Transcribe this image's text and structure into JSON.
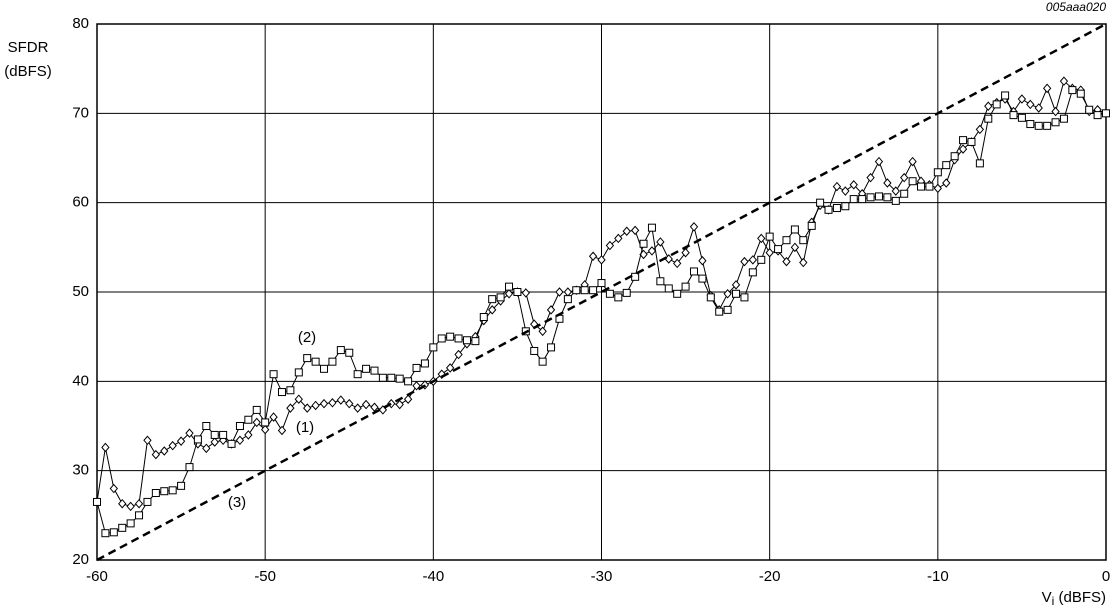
{
  "chart_data": {
    "type": "line",
    "code": "005aaa020",
    "y_label": [
      "SFDR",
      "(dBFS)"
    ],
    "x_label": [
      "V",
      "i",
      " (dBFS)"
    ],
    "xlim": [
      -60,
      0
    ],
    "xticks": [
      -60,
      -50,
      -40,
      -30,
      -20,
      -10,
      0
    ],
    "ylim": [
      20,
      80
    ],
    "yticks": [
      20,
      30,
      40,
      50,
      60,
      70,
      80
    ],
    "grid": true,
    "x": [
      -60,
      -59.5,
      -59,
      -58.5,
      -58,
      -57.5,
      -57,
      -56.5,
      -56,
      -55.5,
      -55,
      -54.5,
      -54,
      -53.5,
      -53,
      -52.5,
      -52,
      -51.5,
      -51,
      -50.5,
      -50,
      -49.5,
      -49,
      -48.5,
      -48,
      -47.5,
      -47,
      -46.5,
      -46,
      -45.5,
      -45,
      -44.5,
      -44,
      -43.5,
      -43,
      -42.5,
      -42,
      -41.5,
      -41,
      -40.5,
      -40,
      -39.5,
      -39,
      -38.5,
      -38,
      -37.5,
      -37,
      -36.5,
      -36,
      -35.5,
      -35,
      -34.5,
      -34,
      -33.5,
      -33,
      -32.5,
      -32,
      -31.5,
      -31,
      -30.5,
      -30,
      -29.5,
      -29,
      -28.5,
      -28,
      -27.5,
      -27,
      -26.5,
      -26,
      -25.5,
      -25,
      -24.5,
      -24,
      -23.5,
      -23,
      -22.5,
      -22,
      -21.5,
      -21,
      -20.5,
      -20,
      -19.5,
      -19,
      -18.5,
      -18,
      -17.5,
      -17,
      -16.5,
      -16,
      -15.5,
      -15,
      -14.5,
      -14,
      -13.5,
      -13,
      -12.5,
      -12,
      -11.5,
      -11,
      -10.5,
      -10,
      -9.5,
      -9,
      -8.5,
      -8,
      -7.5,
      -7,
      -6.5,
      -6,
      -5.5,
      -5,
      -4.5,
      -4,
      -3.5,
      -3,
      -2.5,
      -2,
      -1.5,
      -1,
      -0.5,
      0
    ],
    "series": [
      {
        "name": "(1)",
        "color": "#000000",
        "marker": "diamond",
        "line_style": "solid",
        "values": [
          26.5,
          32.6,
          28.0,
          26.3,
          26.0,
          26.3,
          33.4,
          31.8,
          32.2,
          32.8,
          33.3,
          34.2,
          33.0,
          32.5,
          33.2,
          33.4,
          33.0,
          33.4,
          34.0,
          35.4,
          34.6,
          36.0,
          34.5,
          37.0,
          38.0,
          37.0,
          37.3,
          37.5,
          37.6,
          37.9,
          37.5,
          37.0,
          37.4,
          37.1,
          36.8,
          37.5,
          37.4,
          38.0,
          39.5,
          39.6,
          40.0,
          40.8,
          41.5,
          43.0,
          44.2,
          45.0,
          46.8,
          48.0,
          49.0,
          49.8,
          50.0,
          49.9,
          46.4,
          45.6,
          48.0,
          50.0,
          50.0,
          50.2,
          50.8,
          54.0,
          53.6,
          55.2,
          56.0,
          56.8,
          56.9,
          54.2,
          54.6,
          55.6,
          53.7,
          53.2,
          54.4,
          57.3,
          53.5,
          49.6,
          48.0,
          49.8,
          50.8,
          53.4,
          53.6,
          56.0,
          54.4,
          54.6,
          53.4,
          55.0,
          53.3,
          57.8,
          59.7,
          59.2,
          61.8,
          61.3,
          62.0,
          61.0,
          62.8,
          64.6,
          62.2,
          61.3,
          62.8,
          64.6,
          62.4,
          62.0,
          61.6,
          62.2,
          64.8,
          66.0,
          66.8,
          68.2,
          70.8,
          71.2,
          71.6,
          70.2,
          71.6,
          71.0,
          70.6,
          72.8,
          70.2,
          73.6,
          72.8,
          72.6,
          70.2,
          70.4,
          70.0
        ]
      },
      {
        "name": "(2)",
        "color": "#000000",
        "marker": "square",
        "line_style": "solid",
        "values": [
          26.5,
          23.0,
          23.1,
          23.6,
          24.1,
          25.0,
          26.5,
          27.5,
          27.7,
          27.8,
          28.3,
          30.4,
          33.5,
          35.0,
          34.0,
          34.0,
          33.0,
          35.0,
          35.7,
          36.8,
          35.4,
          40.8,
          38.8,
          39.0,
          41.0,
          42.6,
          42.2,
          41.4,
          42.2,
          43.5,
          43.2,
          40.8,
          41.4,
          41.2,
          40.4,
          40.4,
          40.3,
          40.0,
          41.5,
          42.0,
          43.8,
          44.8,
          45.0,
          44.8,
          44.6,
          44.5,
          47.2,
          49.2,
          49.4,
          50.6,
          50.0,
          45.6,
          43.4,
          42.2,
          43.8,
          47.0,
          49.2,
          50.2,
          50.2,
          50.2,
          51.0,
          49.8,
          49.4,
          49.9,
          51.7,
          55.4,
          57.2,
          51.2,
          50.4,
          49.8,
          50.6,
          52.3,
          51.5,
          49.4,
          47.8,
          48.0,
          49.8,
          49.4,
          52.2,
          53.6,
          56.2,
          54.8,
          55.8,
          57.0,
          55.8,
          57.4,
          60.0,
          59.2,
          59.4,
          59.6,
          60.4,
          60.4,
          60.6,
          60.7,
          60.6,
          60.2,
          61.0,
          62.4,
          61.8,
          61.8,
          63.4,
          64.2,
          65.2,
          67.0,
          66.8,
          64.4,
          69.4,
          71.0,
          72.0,
          69.8,
          69.5,
          68.8,
          68.6,
          68.6,
          69.0,
          69.4,
          72.6,
          72.2,
          70.4,
          69.8,
          70.0
        ]
      },
      {
        "name": "(3)",
        "color": "#000000",
        "marker": "none",
        "line_style": "dashed",
        "x": [
          -60,
          0
        ],
        "values": [
          20,
          80
        ]
      }
    ]
  }
}
